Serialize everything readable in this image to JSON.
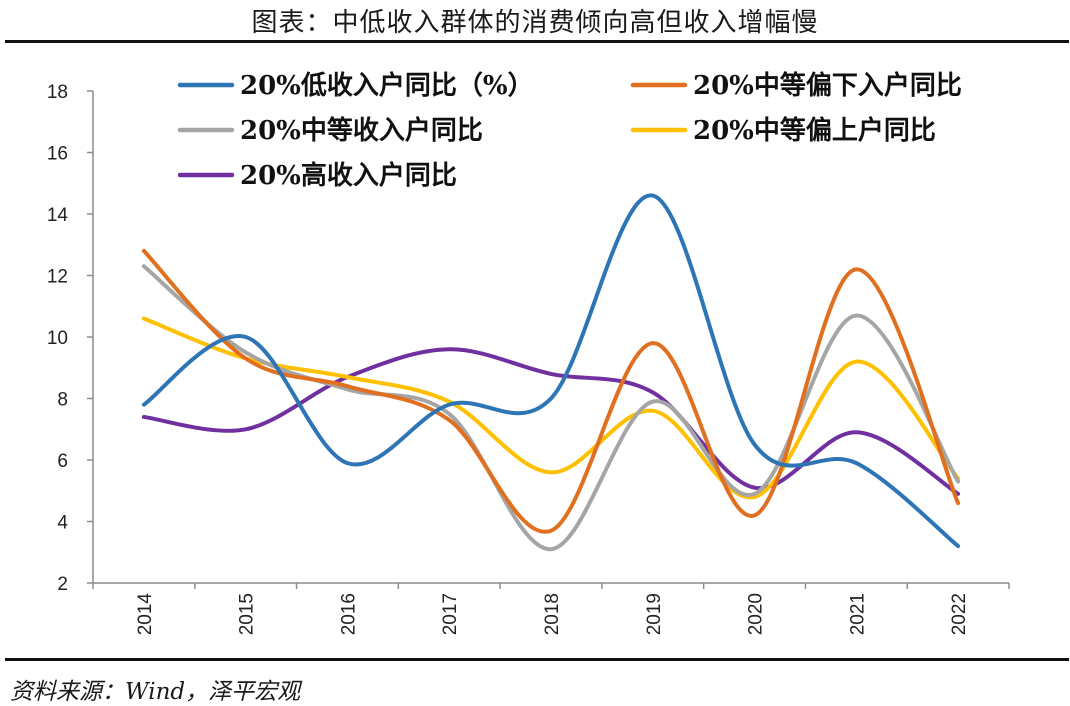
{
  "title": "图表：中低收入群体的消费倾向高但收入增幅慢",
  "source": "资料来源：Wind，泽平宏观",
  "chart_data": {
    "type": "line",
    "smooth": true,
    "categories": [
      "2014",
      "2015",
      "2016",
      "2017",
      "2018",
      "2019",
      "2020",
      "2021",
      "2022"
    ],
    "ylim": [
      2,
      18
    ],
    "yticks": [
      2,
      4,
      6,
      8,
      10,
      12,
      14,
      16,
      18
    ],
    "grid": false,
    "legend_position": "top",
    "series": [
      {
        "name": "20%低收入户同比（%）",
        "color": "#2E75B6",
        "values": [
          7.8,
          10.0,
          5.9,
          7.8,
          8.0,
          14.6,
          6.5,
          5.9,
          3.2
        ]
      },
      {
        "name": "20%中等偏下入户同比",
        "color": "#E07020",
        "values": [
          12.8,
          9.3,
          8.4,
          7.3,
          3.7,
          9.8,
          4.2,
          12.2,
          4.6
        ]
      },
      {
        "name": "20%中等收入户同比",
        "color": "#A5A5A5",
        "values": [
          12.3,
          9.5,
          8.3,
          7.5,
          3.1,
          7.9,
          4.9,
          10.7,
          5.3
        ]
      },
      {
        "name": "20%中等偏上户同比",
        "color": "#FFC000",
        "values": [
          10.6,
          9.3,
          8.7,
          7.9,
          5.6,
          7.6,
          4.8,
          9.2,
          5.4
        ]
      },
      {
        "name": "20%高收入户同比",
        "color": "#7030A0",
        "values": [
          7.4,
          7.0,
          8.7,
          9.6,
          8.8,
          8.2,
          5.1,
          6.9,
          4.9
        ]
      }
    ]
  }
}
